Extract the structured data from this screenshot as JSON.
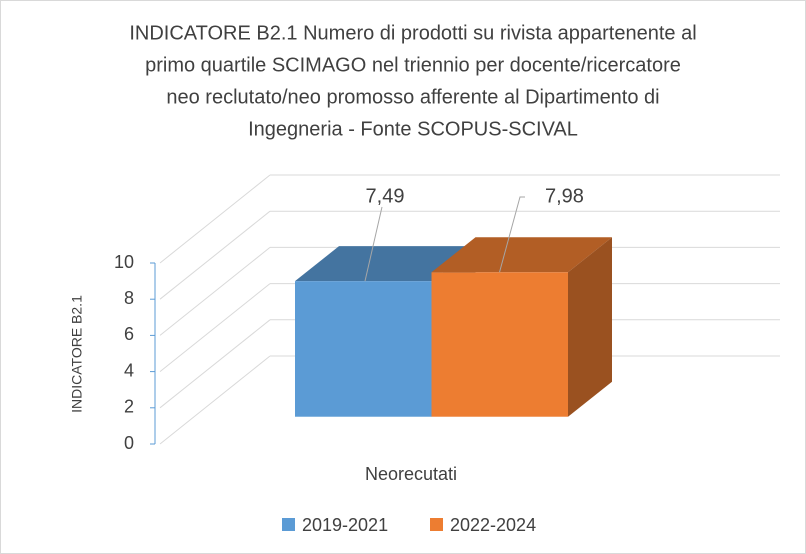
{
  "chart_data": {
    "type": "bar3d",
    "title": [
      "INDICATORE  B2.1  Numero di prodotti su rivista appartenente al",
      "primo quartile SCIMAGO nel triennio per docente/ricercatore",
      "neo reclutato/neo promosso afferente al Dipartimento di",
      "Ingegneria - Fonte SCOPUS-SCIVAL"
    ],
    "y_label": "INDICATORE  B2.1",
    "categories": [
      "Neorecutati"
    ],
    "series": [
      {
        "name": "2019-2021",
        "color": "#5b9bd5",
        "values": [
          7.49
        ],
        "value_labels": [
          "7,49"
        ]
      },
      {
        "name": "2022-2024",
        "color": "#ed7d31",
        "values": [
          7.98
        ],
        "value_labels": [
          "7,98"
        ]
      }
    ],
    "ylim": [
      0,
      10
    ],
    "yticks": [
      0,
      2,
      4,
      6,
      8,
      10
    ],
    "grid": true,
    "legend": "bottom"
  }
}
